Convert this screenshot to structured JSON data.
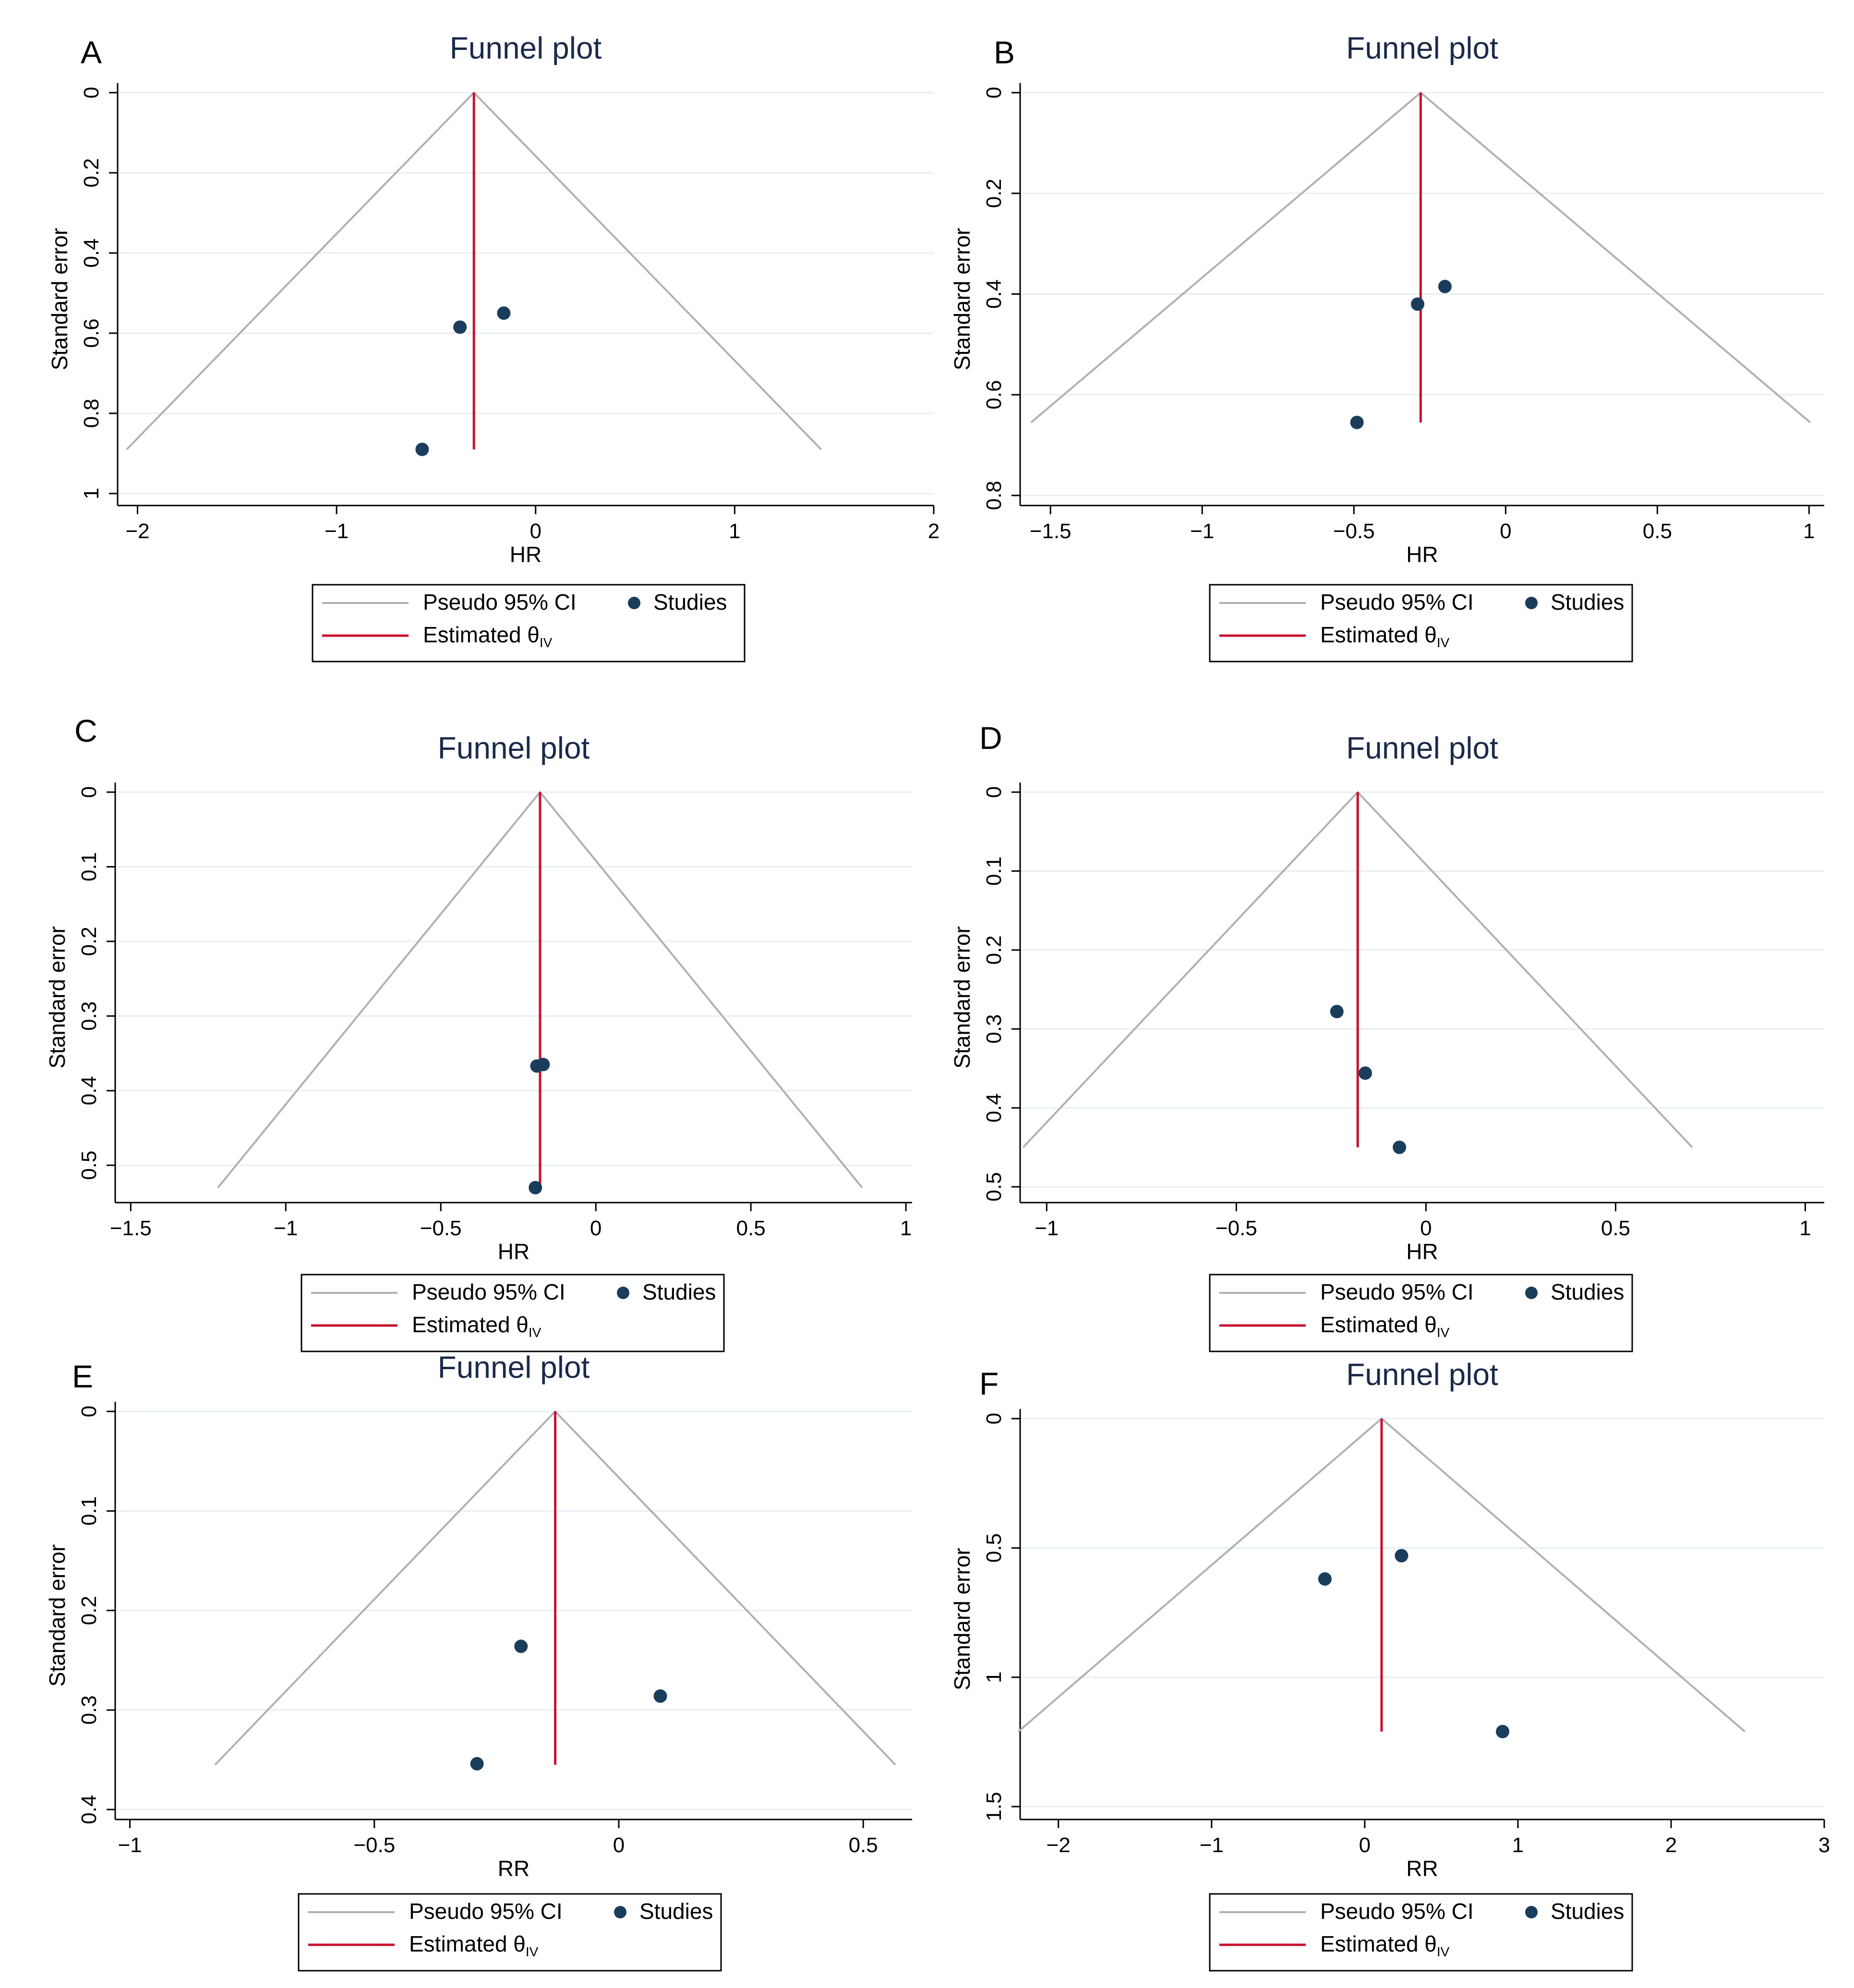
{
  "figure": {
    "colors": {
      "background": "#ffffff",
      "gridline": "#e8eef3",
      "axis": "#000000",
      "ci_line": "#b0b0b0",
      "estimate_line": "#c8102e",
      "point": "#1a3d5c",
      "title": "#1a2a4a"
    },
    "legend": {
      "ci_label": "Pseudo 95% CI",
      "studies_label": "Studies",
      "estimate_label": "Estimated θ",
      "estimate_subscript": "IV"
    }
  },
  "chart_data": [
    {
      "panel": "A",
      "type": "scatter",
      "title": "Funnel plot",
      "xlabel": "HR",
      "ylabel": "Standard error",
      "xlim": [
        -2.1,
        2.0
      ],
      "ylim": [
        1.03,
        0.0
      ],
      "x_ticks": [
        -2,
        -1,
        0,
        1,
        2
      ],
      "y_ticks": [
        0,
        0.2,
        0.4,
        0.6,
        0.8,
        1
      ],
      "grid": true,
      "estimate": -0.31,
      "funnel_max_se": 0.89,
      "points": [
        {
          "x": -0.16,
          "y": 0.55
        },
        {
          "x": -0.38,
          "y": 0.585
        },
        {
          "x": -0.57,
          "y": 0.89
        }
      ],
      "legend_position": "bottom"
    },
    {
      "panel": "B",
      "type": "scatter",
      "title": "Funnel plot",
      "xlabel": "HR",
      "ylabel": "Standard error",
      "xlim": [
        -1.6,
        1.05
      ],
      "ylim": [
        0.82,
        0.0
      ],
      "x_ticks": [
        -1.5,
        -1,
        -0.5,
        0,
        0.5,
        1
      ],
      "y_ticks": [
        0,
        0.2,
        0.4,
        0.6,
        0.8
      ],
      "grid": true,
      "estimate": -0.28,
      "funnel_max_se": 0.655,
      "points": [
        {
          "x": -0.2,
          "y": 0.385
        },
        {
          "x": -0.29,
          "y": 0.42
        },
        {
          "x": -0.49,
          "y": 0.655
        }
      ],
      "legend_position": "bottom"
    },
    {
      "panel": "C",
      "type": "scatter",
      "title": "Funnel plot",
      "xlabel": "HR",
      "ylabel": "Standard error",
      "xlim": [
        -1.55,
        1.02
      ],
      "ylim": [
        0.55,
        0.0
      ],
      "x_ticks": [
        -1.5,
        -1,
        -0.5,
        0,
        0.5,
        1
      ],
      "y_ticks": [
        0,
        0.1,
        0.2,
        0.3,
        0.4,
        0.5
      ],
      "grid": true,
      "estimate": -0.18,
      "funnel_max_se": 0.53,
      "points": [
        {
          "x": -0.17,
          "y": 0.365
        },
        {
          "x": -0.19,
          "y": 0.367
        },
        {
          "x": -0.195,
          "y": 0.53
        }
      ],
      "legend_position": "bottom"
    },
    {
      "panel": "D",
      "type": "scatter",
      "title": "Funnel plot",
      "xlabel": "HR",
      "ylabel": "Standard error",
      "xlim": [
        -1.07,
        1.05
      ],
      "ylim": [
        0.52,
        0.0
      ],
      "x_ticks": [
        -1,
        -0.5,
        0,
        0.5,
        1
      ],
      "y_ticks": [
        0,
        0.1,
        0.2,
        0.3,
        0.4,
        0.5
      ],
      "grid": true,
      "estimate": -0.18,
      "funnel_max_se": 0.45,
      "points": [
        {
          "x": -0.235,
          "y": 0.278
        },
        {
          "x": -0.16,
          "y": 0.356
        },
        {
          "x": -0.07,
          "y": 0.45
        }
      ],
      "legend_position": "bottom"
    },
    {
      "panel": "E",
      "type": "scatter",
      "title": "Funnel plot",
      "xlabel": "RR",
      "ylabel": "Standard error",
      "xlim": [
        -1.03,
        0.6
      ],
      "ylim": [
        0.41,
        0.0
      ],
      "x_ticks": [
        -1,
        -0.5,
        0,
        0.5
      ],
      "y_ticks": [
        0,
        0.1,
        0.2,
        0.3,
        0.4
      ],
      "grid": true,
      "estimate": -0.13,
      "funnel_max_se": 0.355,
      "points": [
        {
          "x": -0.2,
          "y": 0.236
        },
        {
          "x": 0.085,
          "y": 0.286
        },
        {
          "x": -0.29,
          "y": 0.354
        }
      ],
      "legend_position": "bottom"
    },
    {
      "panel": "F",
      "type": "scatter",
      "title": "Funnel plot",
      "xlabel": "RR",
      "ylabel": "Standard error",
      "xlim": [
        -2.25,
        3.0
      ],
      "ylim": [
        1.55,
        0.0
      ],
      "x_ticks": [
        -2,
        -1,
        0,
        1,
        2,
        3
      ],
      "y_ticks": [
        0,
        0.5,
        1,
        1.5
      ],
      "grid": true,
      "estimate": 0.11,
      "funnel_max_se": 1.21,
      "points": [
        {
          "x": 0.24,
          "y": 0.53
        },
        {
          "x": -0.26,
          "y": 0.62
        },
        {
          "x": 0.9,
          "y": 1.21
        }
      ],
      "legend_position": "bottom"
    }
  ]
}
